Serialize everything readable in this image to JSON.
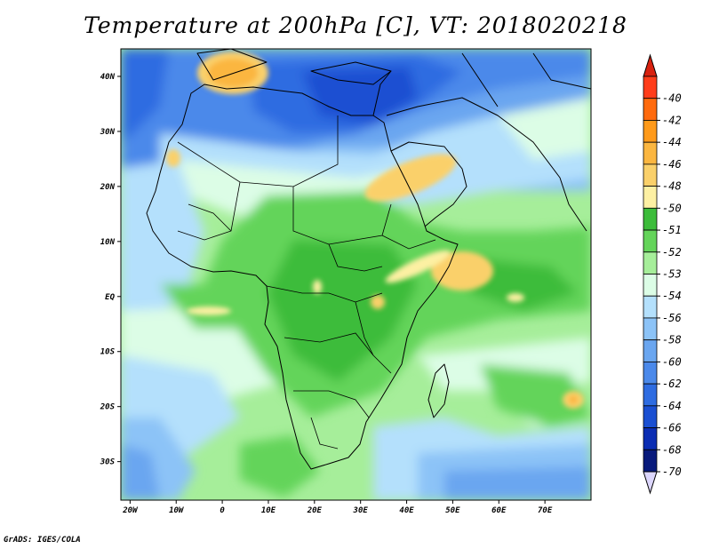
{
  "title": "Temperature at 200hPa [C], VT: 2018020218",
  "credit": "GrADS: IGES/COLA",
  "map": {
    "variable": "Temperature",
    "level": "200hPa",
    "units": "C",
    "lon_range": [
      -22,
      80
    ],
    "lat_range": [
      -37,
      45
    ],
    "x_ticks": [
      {
        "lon": -20,
        "label": "20W"
      },
      {
        "lon": -10,
        "label": "10W"
      },
      {
        "lon": 0,
        "label": "0"
      },
      {
        "lon": 10,
        "label": "10E"
      },
      {
        "lon": 20,
        "label": "20E"
      },
      {
        "lon": 30,
        "label": "30E"
      },
      {
        "lon": 40,
        "label": "40E"
      },
      {
        "lon": 50,
        "label": "50E"
      },
      {
        "lon": 60,
        "label": "60E"
      },
      {
        "lon": 70,
        "label": "70E"
      }
    ],
    "y_ticks": [
      {
        "lat": 40,
        "label": "40N"
      },
      {
        "lat": 30,
        "label": "30N"
      },
      {
        "lat": 20,
        "label": "20N"
      },
      {
        "lat": 10,
        "label": "10N"
      },
      {
        "lat": 0,
        "label": "EQ"
      },
      {
        "lat": -10,
        "label": "10S"
      },
      {
        "lat": -20,
        "label": "20S"
      },
      {
        "lat": -30,
        "label": "30S"
      }
    ]
  },
  "colorbar": {
    "levels": [
      {
        "label": "-40",
        "color": "#ff3d1a"
      },
      {
        "label": "-42",
        "color": "#ff6a0d"
      },
      {
        "label": "-44",
        "color": "#ff9a1a"
      },
      {
        "label": "-46",
        "color": "#fbb640"
      },
      {
        "label": "-48",
        "color": "#fad06a"
      },
      {
        "label": "-50",
        "color": "#fdf0a3"
      },
      {
        "label": "-51",
        "color": "#3cbc3a"
      },
      {
        "label": "-52",
        "color": "#64d45a"
      },
      {
        "label": "-53",
        "color": "#a6ee9a"
      },
      {
        "label": "-54",
        "color": "#dcfde6"
      },
      {
        "label": "-56",
        "color": "#b4e0fc"
      },
      {
        "label": "-58",
        "color": "#8cc3f7"
      },
      {
        "label": "-60",
        "color": "#6aa6f0"
      },
      {
        "label": "-62",
        "color": "#4b89ea"
      },
      {
        "label": "-64",
        "color": "#2e6ce1"
      },
      {
        "label": "-66",
        "color": "#1a4fd2"
      },
      {
        "label": "-68",
        "color": "#0b2db3"
      },
      {
        "label": "-70",
        "color": "#081a7c"
      }
    ],
    "over_color": "#d8210f",
    "under_color": "#dcd6fc"
  }
}
